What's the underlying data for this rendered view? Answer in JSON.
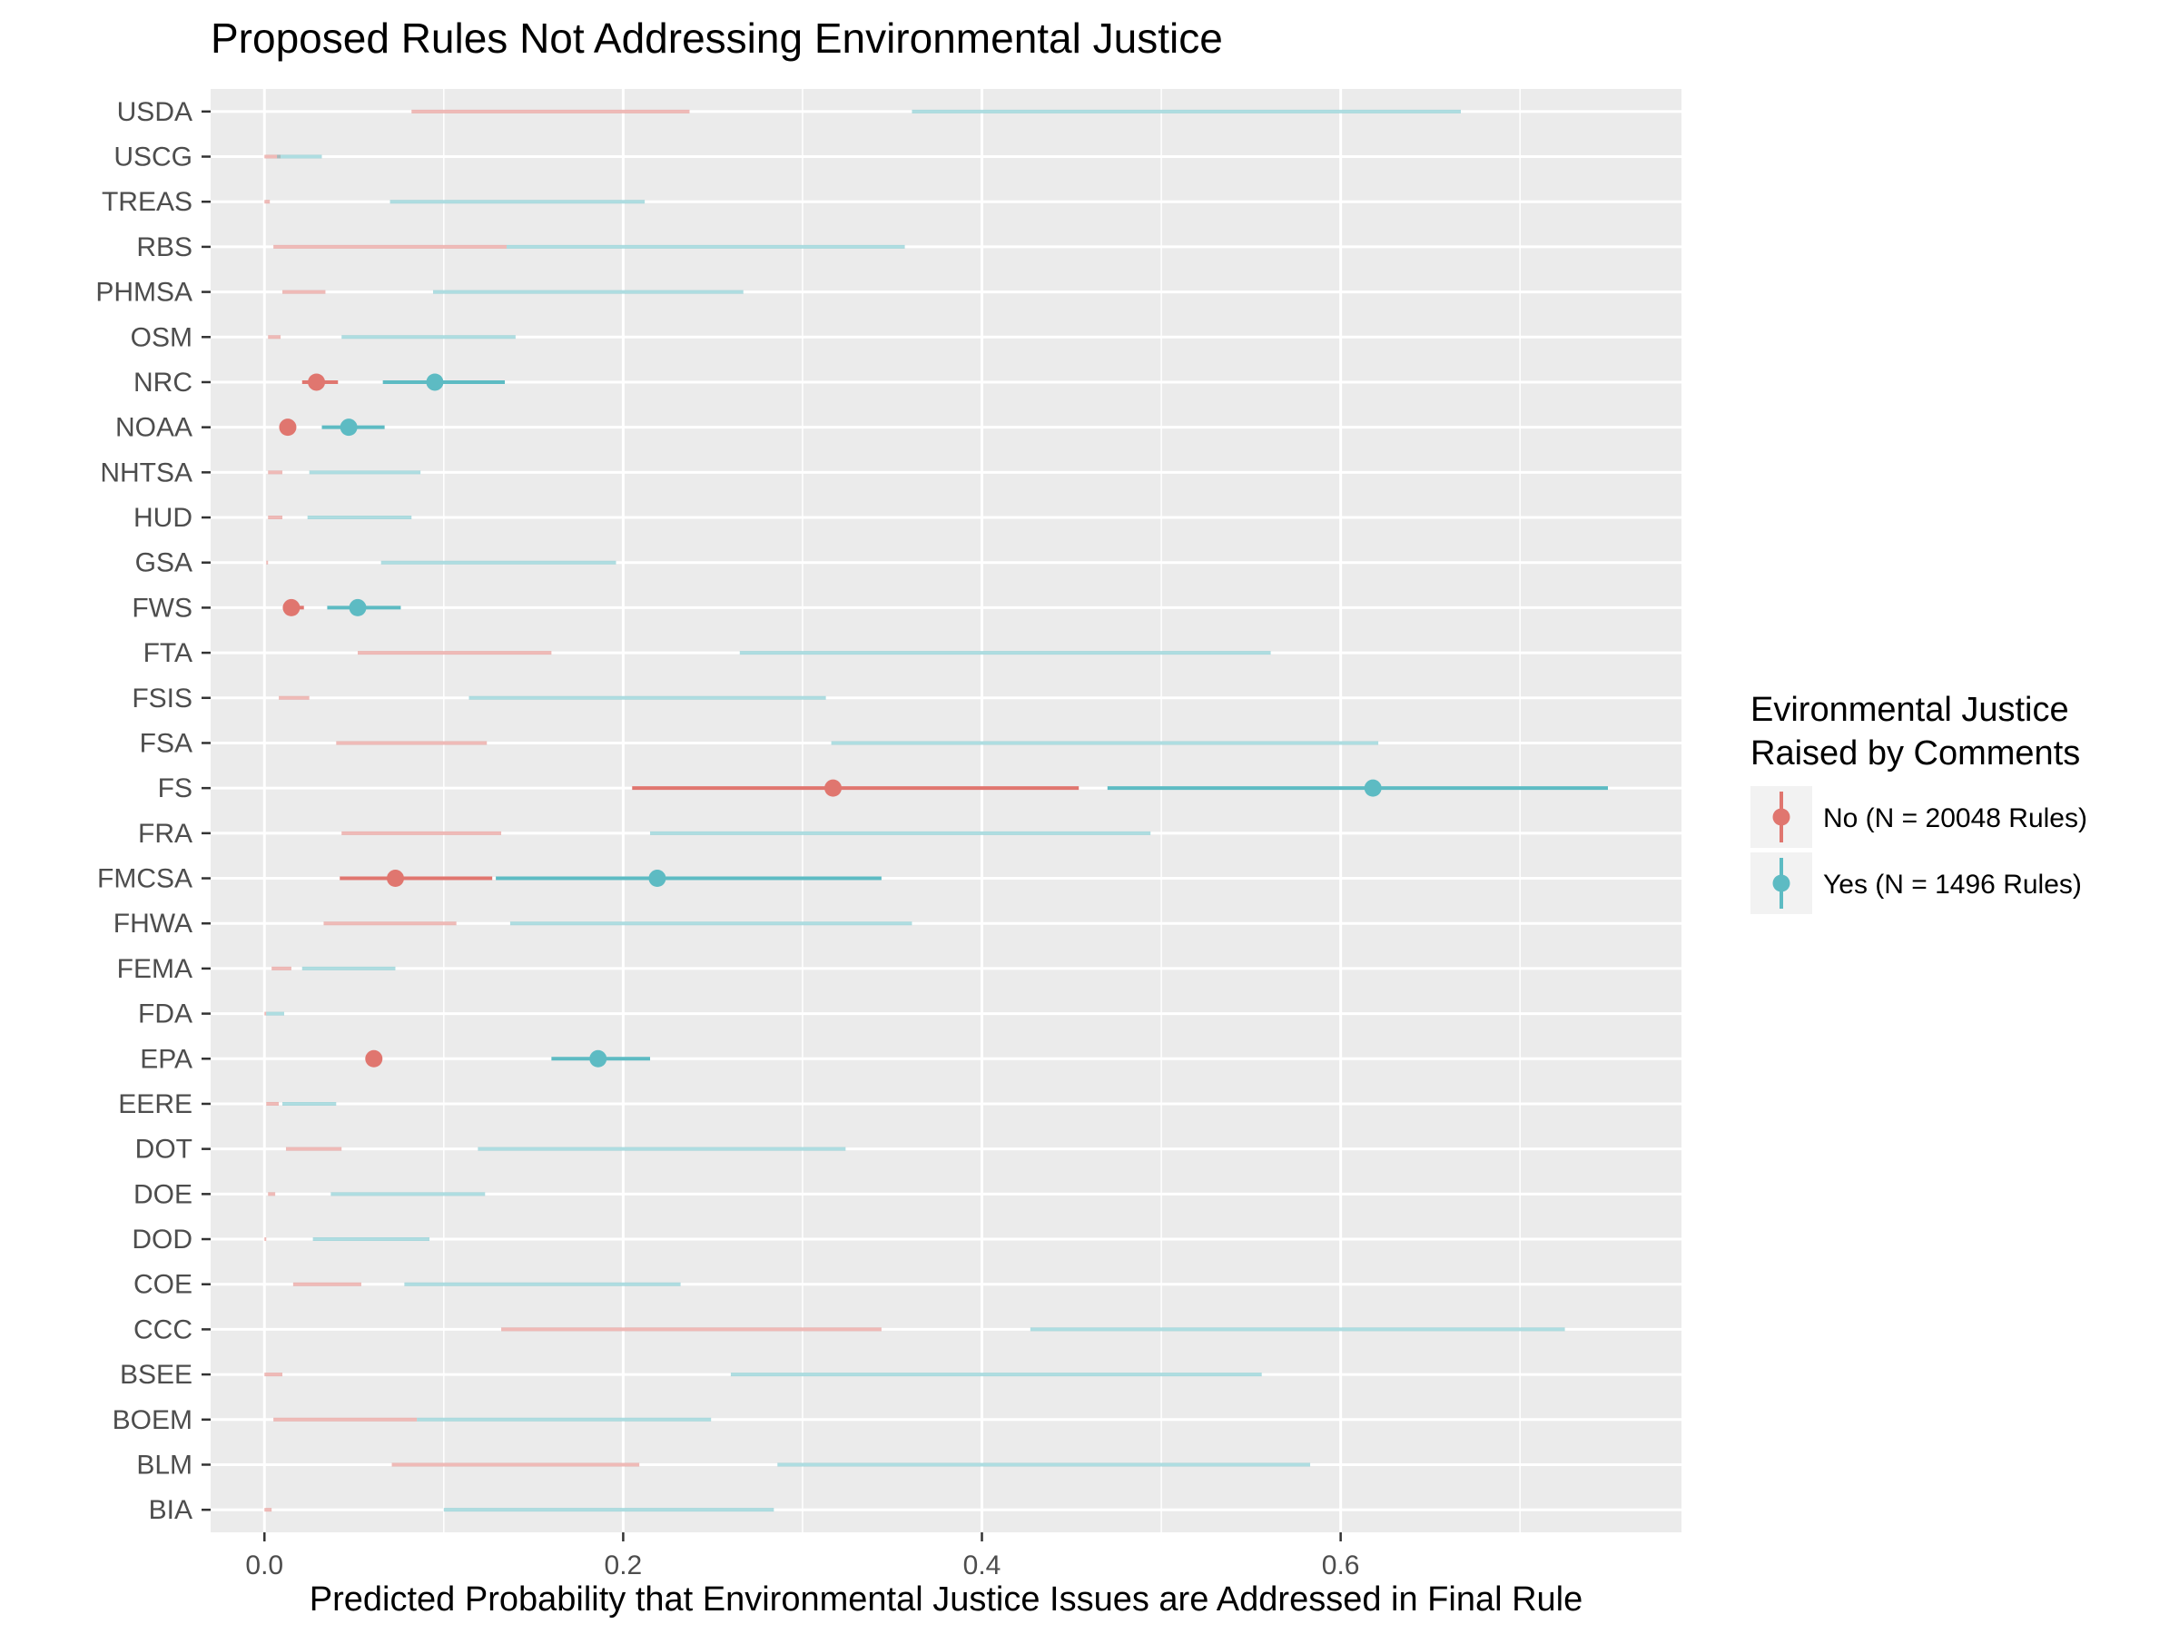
{
  "chart_data": {
    "type": "pointrange",
    "title": "Proposed Rules Not Addressing Environmental Justice",
    "xlabel": "Predicted Probability that Environmental Justice Issues are Addressed in Final Rule",
    "ylabel": "",
    "xlim": [
      -0.03,
      0.79
    ],
    "x_ticks": [
      "0.0",
      "0.2",
      "0.4",
      "0.6"
    ],
    "x_tick_values": [
      0.0,
      0.2,
      0.4,
      0.6
    ],
    "grid": true,
    "legend": {
      "title_line1": "Evironmental Justice",
      "title_line2": "Raised by Comments",
      "position": "right"
    },
    "categories": [
      "USDA",
      "USCG",
      "TREAS",
      "RBS",
      "PHMSA",
      "OSM",
      "NRC",
      "NOAA",
      "NHTSA",
      "HUD",
      "GSA",
      "FWS",
      "FTA",
      "FSIS",
      "FSA",
      "FS",
      "FRA",
      "FMCSA",
      "FHWA",
      "FEMA",
      "FDA",
      "EPA",
      "EERE",
      "DOT",
      "DOE",
      "DOD",
      "COE",
      "CCC",
      "BSEE",
      "BOEM",
      "BLM",
      "BIA"
    ],
    "series": [
      {
        "name": "No (N = 20048 Rules)",
        "color": "#E0766F",
        "low": [
          0.082,
          0.0,
          0.0,
          0.005,
          0.01,
          0.002,
          0.021,
          0.013,
          0.002,
          0.002,
          0.001,
          0.013,
          0.052,
          0.008,
          0.04,
          0.205,
          0.043,
          0.042,
          0.033,
          0.004,
          0.0,
          0.059,
          0.001,
          0.012,
          0.002,
          0.0,
          0.016,
          0.132,
          0.0,
          0.005,
          0.071,
          0.0
        ],
        "point": [
          null,
          null,
          null,
          null,
          null,
          null,
          0.029,
          0.013,
          null,
          null,
          null,
          0.015,
          null,
          null,
          null,
          0.317,
          null,
          0.073,
          null,
          null,
          null,
          0.061,
          null,
          null,
          null,
          null,
          null,
          null,
          null,
          null,
          null,
          null
        ],
        "high": [
          0.237,
          0.009,
          0.003,
          0.135,
          0.034,
          0.009,
          0.041,
          0.016,
          0.01,
          0.01,
          0.002,
          0.022,
          0.16,
          0.025,
          0.124,
          0.454,
          0.132,
          0.127,
          0.107,
          0.015,
          0.001,
          0.064,
          0.008,
          0.043,
          0.006,
          0.0,
          0.054,
          0.344,
          0.01,
          0.085,
          0.209,
          0.004
        ]
      },
      {
        "name": "Yes (N = 1496 Rules)",
        "color": "#5DBBC3",
        "low": [
          0.361,
          0.007,
          0.07,
          0.135,
          0.094,
          0.043,
          0.066,
          0.032,
          0.025,
          0.024,
          0.065,
          0.035,
          0.265,
          0.114,
          0.316,
          0.47,
          0.215,
          0.129,
          0.137,
          0.021,
          0.001,
          0.16,
          0.01,
          0.119,
          0.037,
          0.027,
          0.078,
          0.427,
          0.26,
          0.085,
          0.286,
          0.1
        ],
        "point": [
          null,
          null,
          null,
          null,
          null,
          null,
          0.095,
          0.047,
          null,
          null,
          null,
          0.052,
          null,
          null,
          null,
          0.618,
          null,
          0.219,
          null,
          null,
          null,
          0.186,
          null,
          null,
          null,
          null,
          null,
          null,
          null,
          null,
          null,
          null
        ],
        "high": [
          0.667,
          0.032,
          0.212,
          0.357,
          0.267,
          0.14,
          0.134,
          0.067,
          0.087,
          0.082,
          0.196,
          0.076,
          0.561,
          0.313,
          0.621,
          0.749,
          0.494,
          0.344,
          0.361,
          0.073,
          0.011,
          0.215,
          0.04,
          0.324,
          0.123,
          0.092,
          0.232,
          0.725,
          0.556,
          0.249,
          0.583,
          0.284
        ]
      }
    ]
  }
}
